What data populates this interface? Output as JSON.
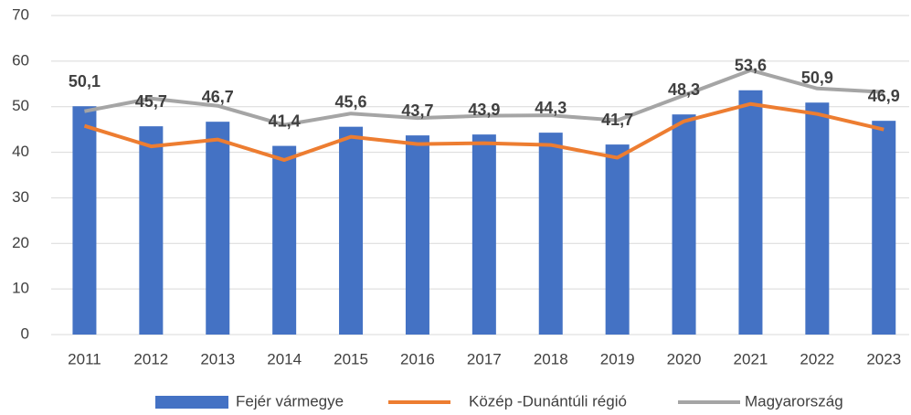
{
  "chart_data": {
    "type": "bar_line",
    "categories": [
      "2011",
      "2012",
      "2013",
      "2014",
      "2015",
      "2016",
      "2017",
      "2018",
      "2019",
      "2020",
      "2021",
      "2022",
      "2023"
    ],
    "series": [
      {
        "name": "Fejér vármegye",
        "color": "#4472c4",
        "kind": "bar",
        "values": [
          50.1,
          45.7,
          46.7,
          41.4,
          45.6,
          43.7,
          43.9,
          44.3,
          41.7,
          48.3,
          53.6,
          50.9,
          46.9
        ],
        "value_labels": [
          "50,1",
          "45,7",
          "46,7",
          "41,4",
          "45,6",
          "43,7",
          "43,9",
          "44,3",
          "41,7",
          "48,3",
          "53,6",
          "50,9",
          "46,9"
        ]
      },
      {
        "name": "Közép -Dunántúli régió",
        "color": "#ed7d31",
        "kind": "line",
        "values": [
          45.8,
          41.3,
          42.8,
          38.3,
          43.4,
          41.8,
          42.0,
          41.6,
          38.8,
          46.8,
          50.6,
          48.4,
          45.0
        ]
      },
      {
        "name": "Magyarország",
        "color": "#a5a5a5",
        "kind": "line",
        "values": [
          49.0,
          51.8,
          50.2,
          46.0,
          48.5,
          47.5,
          48.0,
          48.1,
          47.0,
          52.5,
          58.0,
          54.0,
          53.2
        ]
      }
    ],
    "ylim": [
      0,
      70
    ],
    "yticks": [
      0,
      10,
      20,
      30,
      40,
      50,
      60,
      70
    ],
    "grid": true,
    "legend": "bottom"
  }
}
